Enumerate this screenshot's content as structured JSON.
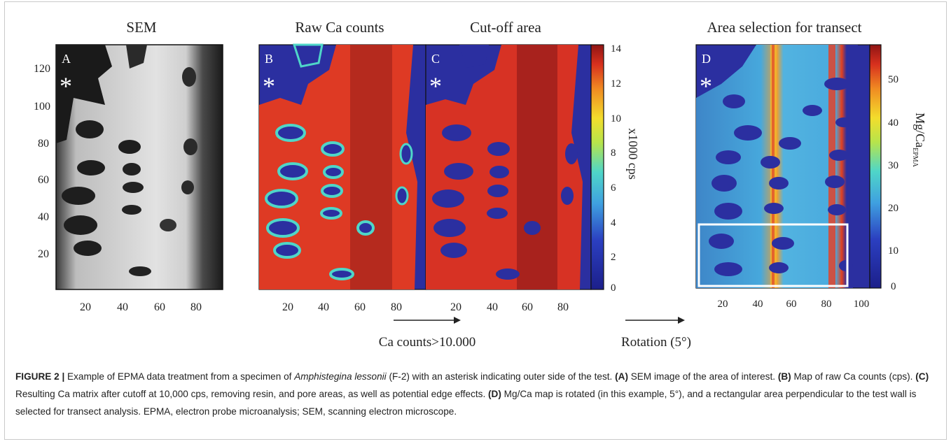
{
  "figure": {
    "panel_titles": {
      "sem": "SEM",
      "raw": "Raw Ca counts",
      "cutoff": "Cut-off area",
      "selection": "Area selection for transect"
    },
    "panel_letters": {
      "a": "A",
      "b": "B",
      "c": "C",
      "d": "D"
    },
    "asterisk": "*",
    "sem_y_ticks": [
      "120",
      "100",
      "80",
      "60",
      "40",
      "20"
    ],
    "sem_x_ticks": [
      "20",
      "40",
      "60",
      "80"
    ],
    "bc_x_ticks": [
      "20",
      "40",
      "60",
      "80",
      "20",
      "40",
      "60",
      "80"
    ],
    "d_x_ticks": [
      "20",
      "40",
      "60",
      "80",
      "100"
    ],
    "colorbar_ca": {
      "ticks": [
        "14",
        "12",
        "10",
        "8",
        "6",
        "4",
        "2",
        "0"
      ],
      "label": "x1000 cps"
    },
    "colorbar_mg": {
      "ticks": [
        "50",
        "40",
        "30",
        "20",
        "10",
        "0"
      ],
      "label_main": "Mg/Ca",
      "label_sub": "EPMA"
    },
    "arrow_cutoff_label": "Ca counts>10.000",
    "arrow_rotation_label": "Rotation (5°)",
    "colors": {
      "background_blue": "#2b2fa0",
      "matrix_red": "#d73224",
      "matrix_dark_red": "#a8221d",
      "cyan": "#3fb8d8",
      "yellow": "#f3dd2c",
      "selection_box": "#ffffff"
    }
  },
  "caption": {
    "prefix": "FIGURE 2 |",
    "intro": " Example of EPMA data treatment from a specimen of ",
    "species": "Amphistegina lessonii",
    "intro_rest": " (F-2) with an asterisk indicating outer side of the test. ",
    "a_tag": "(A)",
    "a_text": " SEM image of the area of interest. ",
    "b_tag": "(B)",
    "b_text": " Map of raw Ca counts (cps). ",
    "c_tag": "(C)",
    "c_text": " Resulting Ca matrix after cutoff at 10,000 cps, removing resin, and pore areas, as well as potential edge effects. ",
    "d_tag": "(D)",
    "d_text": " Mg/Ca map is rotated (in this example, 5°), and a rectangular area perpendicular to the test wall is selected for transect analysis. EPMA, electron probe microanalysis; SEM, scanning electron microscope."
  }
}
